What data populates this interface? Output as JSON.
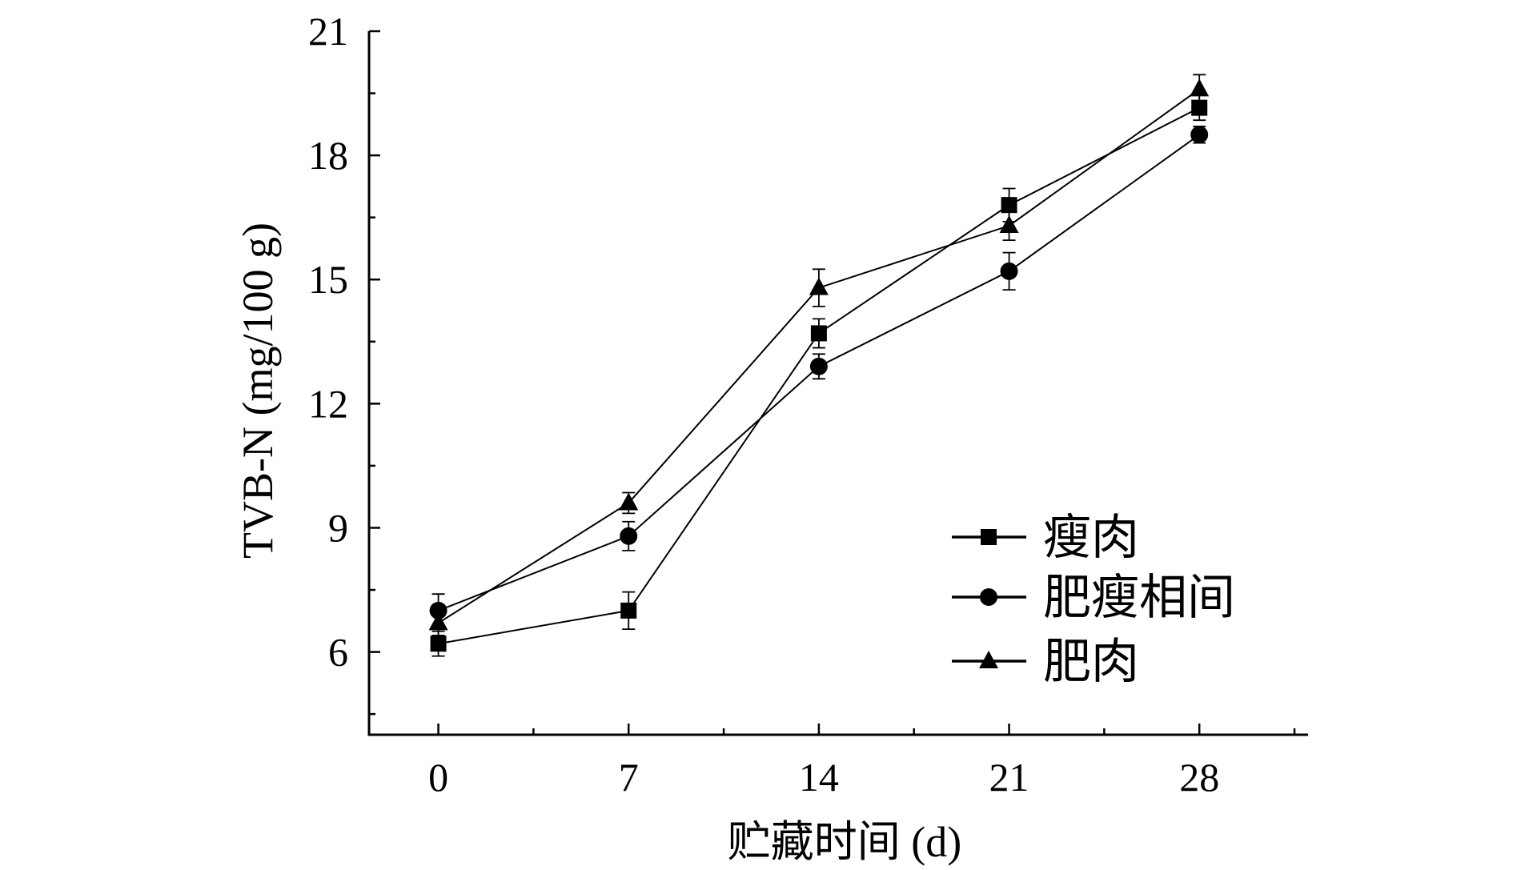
{
  "chart_data": {
    "type": "line",
    "title": "",
    "xlabel": "贮藏时间 (d)",
    "ylabel": "TVB-N (mg/100 g)",
    "x": [
      0,
      7,
      14,
      21,
      28
    ],
    "xticks": [
      "0",
      "7",
      "14",
      "21",
      "28"
    ],
    "yticks": [
      "6",
      "9",
      "12",
      "15",
      "18",
      "21"
    ],
    "xlim": [
      -2.55,
      32
    ],
    "ylim": [
      4,
      21
    ],
    "grid": false,
    "legend_position": "bottom-right",
    "series": [
      {
        "name": "瘦肉",
        "marker": "square",
        "values": [
          6.2,
          7.0,
          13.7,
          16.8,
          19.15
        ],
        "errors": [
          0.3,
          0.45,
          0.35,
          0.4,
          0.3
        ]
      },
      {
        "name": "肥瘦相间",
        "marker": "circle",
        "values": [
          7.0,
          8.8,
          12.9,
          15.2,
          18.5
        ],
        "errors": [
          0.4,
          0.35,
          0.3,
          0.45,
          0.2
        ]
      },
      {
        "name": "肥肉",
        "marker": "triangle",
        "values": [
          6.7,
          9.6,
          14.8,
          16.3,
          19.6
        ],
        "errors": [
          0.3,
          0.25,
          0.45,
          0.35,
          0.35
        ]
      }
    ],
    "color": "#000000"
  }
}
